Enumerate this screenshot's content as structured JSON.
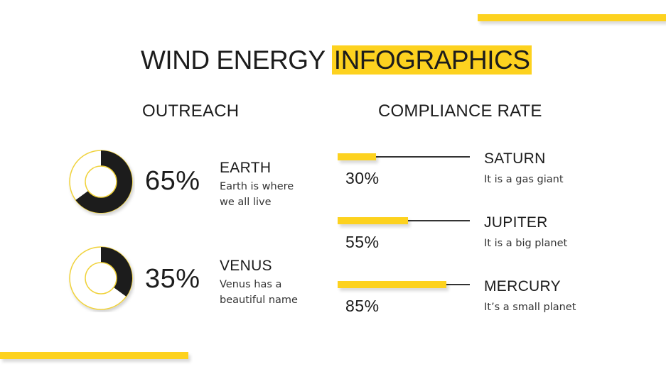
{
  "title": {
    "plain": "WIND ENERGY ",
    "highlight": "INFOGRAPHICS"
  },
  "colors": {
    "accent": "#fdd21f",
    "dark": "#1c1c1c",
    "background": "#ffffff"
  },
  "outreach": {
    "heading": "OUTREACH",
    "items": [
      {
        "percent_label": "65%",
        "value": 65,
        "name": "EARTH",
        "desc_line1": "Earth is where",
        "desc_line2": "we all live"
      },
      {
        "percent_label": "35%",
        "value": 35,
        "name": "VENUS",
        "desc_line1": "Venus has a",
        "desc_line2": "beautiful name"
      }
    ]
  },
  "compliance": {
    "heading": "COMPLIANCE RATE",
    "items": [
      {
        "percent_label": "30%",
        "value": 30,
        "name": "SATURN",
        "desc": "It is a gas giant"
      },
      {
        "percent_label": "55%",
        "value": 55,
        "name": "JUPITER",
        "desc": "It is a big planet"
      },
      {
        "percent_label": "85%",
        "value": 85,
        "name": "MERCURY",
        "desc": "It’s a small planet"
      }
    ]
  },
  "chart_data": [
    {
      "type": "pie",
      "title": "OUTREACH",
      "categories": [
        "Earth",
        "Venus"
      ],
      "values": [
        65,
        35
      ],
      "unit": "%",
      "note": "Each rendered as a separate donut gauge (value out of 100)"
    },
    {
      "type": "bar",
      "title": "COMPLIANCE RATE",
      "categories": [
        "Saturn",
        "Jupiter",
        "Mercury"
      ],
      "values": [
        30,
        55,
        85
      ],
      "unit": "%",
      "orientation": "horizontal",
      "ylim": [
        0,
        100
      ]
    }
  ]
}
